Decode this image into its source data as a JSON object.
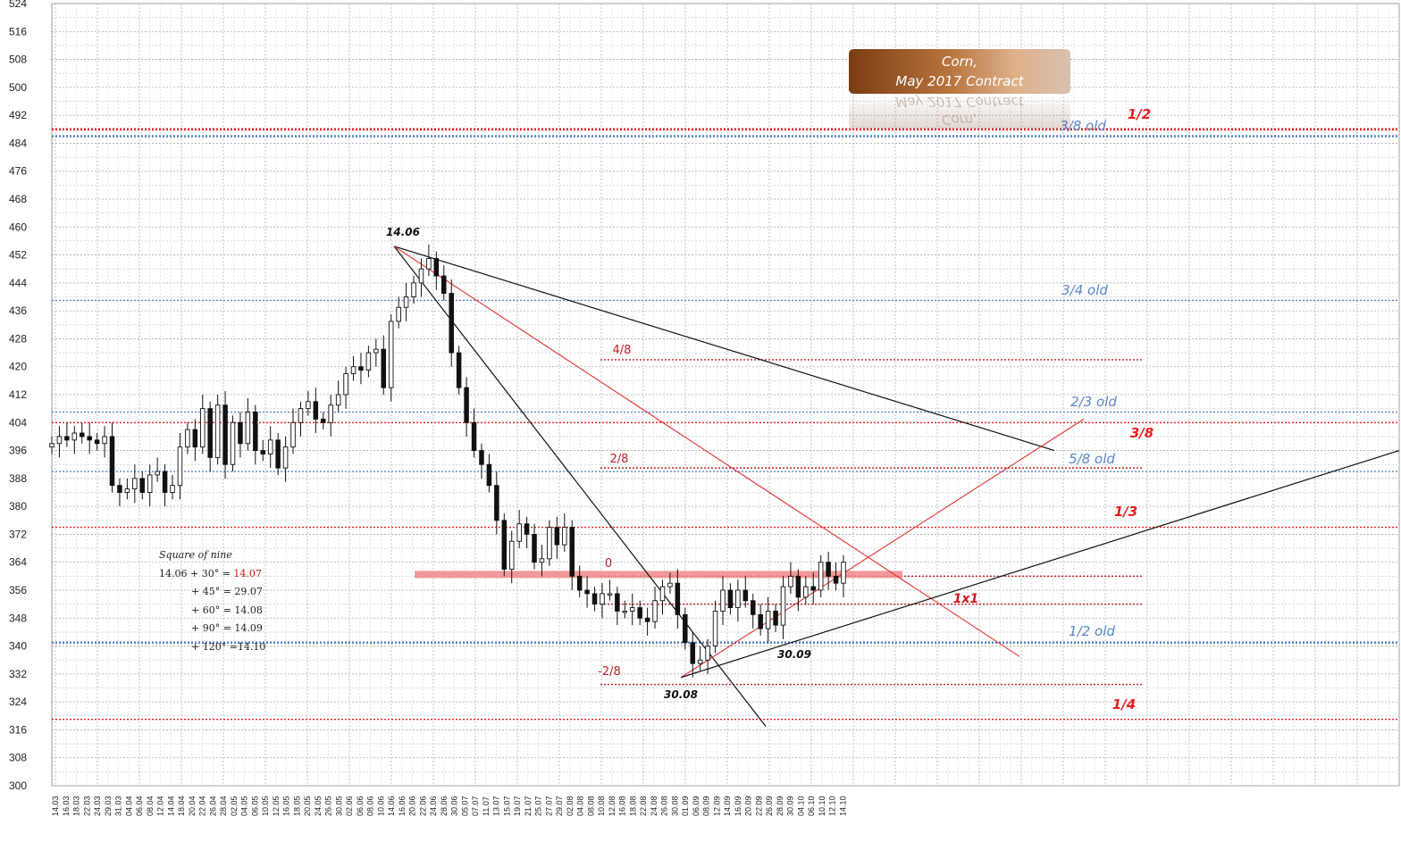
{
  "title": {
    "line1": "Corn,",
    "line2": "May 2017 Contract"
  },
  "chart_data": {
    "type": "candlestick",
    "y_ticks": [
      524,
      516,
      508,
      500,
      492,
      484,
      476,
      468,
      460,
      452,
      444,
      436,
      428,
      420,
      412,
      404,
      396,
      388,
      380,
      372,
      364,
      356,
      348,
      340,
      332,
      324,
      316,
      308,
      300
    ],
    "ylim": [
      300,
      524
    ],
    "x_dates": [
      "14.03",
      "16.03",
      "18.03",
      "22.03",
      "24.03",
      "29.03",
      "31.03",
      "04.04",
      "06.04",
      "08.04",
      "12.04",
      "14.04",
      "18.04",
      "20.04",
      "22.04",
      "26.04",
      "28.04",
      "02.05",
      "04.05",
      "06.05",
      "10.05",
      "12.05",
      "16.05",
      "18.05",
      "20.05",
      "24.05",
      "26.05",
      "30.05",
      "02.06",
      "06.06",
      "08.06",
      "10.06",
      "14.06",
      "16.06",
      "20.06",
      "22.06",
      "24.06",
      "28.06",
      "30.06",
      "05.07",
      "07.07",
      "11.07",
      "13.07",
      "15.07",
      "19.07",
      "21.07",
      "25.07",
      "27.07",
      "29.07",
      "02.08",
      "04.08",
      "08.08",
      "10.08",
      "12.08",
      "16.08",
      "18.08",
      "22.08",
      "24.08",
      "26.08",
      "30.08",
      "01.09",
      "06.09",
      "08.09",
      "12.09",
      "14.09",
      "16.09",
      "20.09",
      "22.09",
      "26.09",
      "28.09",
      "30.09",
      "04.10",
      "06.10",
      "10.10",
      "12.10",
      "14.10"
    ],
    "closes": [
      398,
      400,
      399,
      401,
      400,
      399,
      398,
      400,
      386,
      384,
      385,
      388,
      384,
      389,
      390,
      384,
      386,
      397,
      402,
      397,
      408,
      394,
      409,
      392,
      404,
      398,
      407,
      396,
      395,
      399,
      391,
      397,
      404,
      408,
      410,
      405,
      404,
      409,
      412,
      418,
      420,
      419,
      424,
      425,
      414,
      433,
      437,
      440,
      444,
      448,
      451,
      446,
      441,
      424,
      414,
      404,
      396,
      392,
      386,
      376,
      362,
      370,
      375,
      372,
      364,
      365,
      374,
      369,
      374,
      360,
      356,
      355,
      352,
      355,
      355,
      350,
      350,
      351,
      348,
      347,
      353,
      357,
      358,
      349,
      341,
      335,
      336,
      340,
      350,
      356,
      351,
      356,
      353,
      349,
      345,
      350,
      346,
      357,
      360,
      354,
      357,
      356,
      364,
      360,
      358,
      364
    ],
    "levels": [
      {
        "label": "1/2",
        "value": 488,
        "color": "#e81c1c",
        "style": "bold"
      },
      {
        "label": "3/8 old",
        "value": 486,
        "color": "#5b86c4",
        "style": "bold"
      },
      {
        "label": "3/4 old",
        "value": 439,
        "color": "#5b86c4",
        "style": "thin"
      },
      {
        "label": "4/8",
        "value": 422,
        "color": "#c0202a",
        "style": "thin"
      },
      {
        "label": "2/3 old",
        "value": 407,
        "color": "#5b86c4",
        "style": "thin"
      },
      {
        "label": "3/8",
        "value": 404,
        "color": "#e81c1c",
        "style": "thin"
      },
      {
        "label": "2/8",
        "value": 391,
        "color": "#c0202a",
        "style": "thin"
      },
      {
        "label": "5/8 old",
        "value": 390,
        "color": "#5b86c4",
        "style": "thin"
      },
      {
        "label": "1/3",
        "value": 374,
        "color": "#e81c1c",
        "style": "thin"
      },
      {
        "label": "0",
        "value": 360,
        "color": "#c0202a",
        "style": "thin"
      },
      {
        "label": "",
        "value": 352,
        "color": "#c0202a",
        "style": "thin"
      },
      {
        "label": "1/2 old",
        "value": 341,
        "color": "#5b86c4",
        "style": "bold"
      },
      {
        "label": "-2/8",
        "value": 329,
        "color": "#c0202a",
        "style": "thin"
      },
      {
        "label": "1/4",
        "value": 319,
        "color": "#e81c1c",
        "style": "thin"
      }
    ],
    "annotations": [
      "14.06",
      "30.08",
      "30.09",
      "1x1"
    ],
    "square_of_nine": {
      "heading": "Square of nine",
      "rows": [
        {
          "text": "14.06 + 30° = ",
          "hl": "14.07"
        },
        {
          "text": "+ 45° = 29.07",
          "hl": ""
        },
        {
          "text": "+ 60° = 14.08",
          "hl": ""
        },
        {
          "text": "+ 90° = 14.09",
          "hl": ""
        },
        {
          "text": "+ 120° =14.10",
          "hl": ""
        }
      ]
    }
  }
}
